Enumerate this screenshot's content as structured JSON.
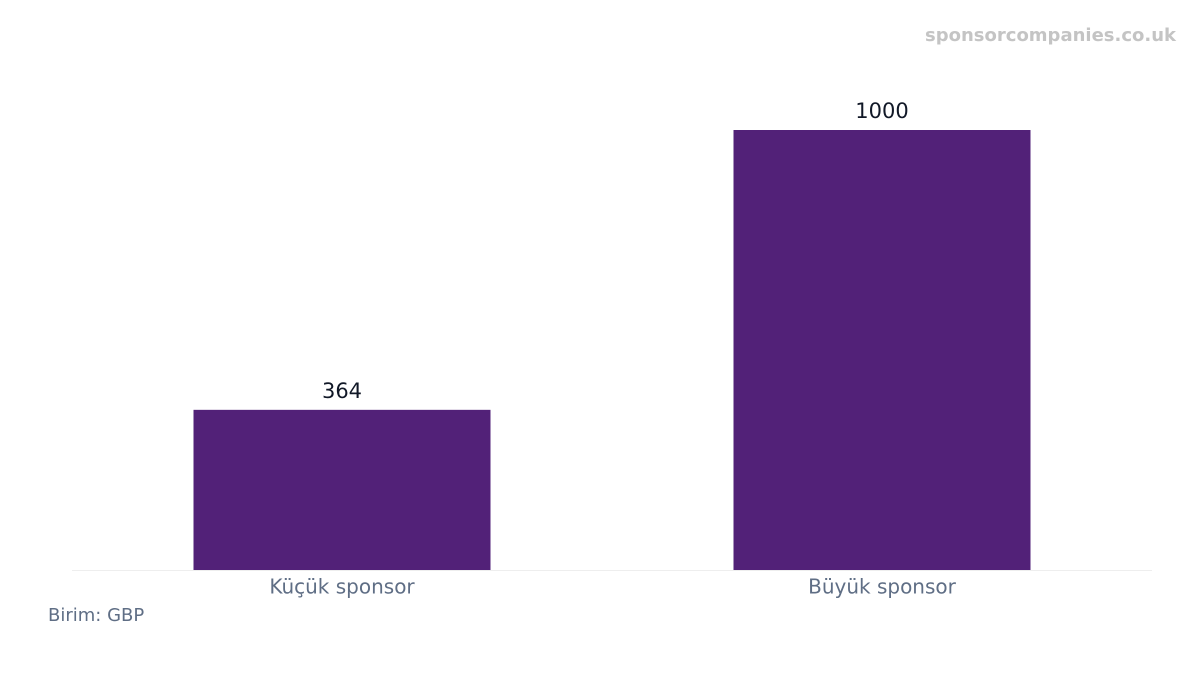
{
  "chart_data": {
    "type": "bar",
    "watermark": "sponsorcompanies.co.uk",
    "note": "Birim: GBP",
    "categories": [
      "Küçük sponsor",
      "Büyük sponsor"
    ],
    "values": [
      364,
      1000
    ],
    "color": "#522178",
    "ylim": [
      0,
      1000
    ]
  }
}
